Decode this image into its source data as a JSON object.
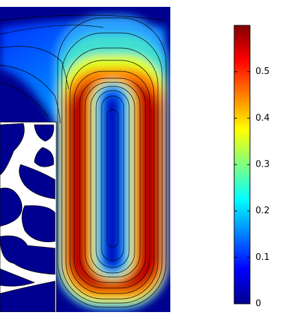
{
  "chart_data": {
    "type": "field",
    "colormap": [
      "#00008f",
      "#0000ff",
      "#0080ff",
      "#00ffff",
      "#80ff80",
      "#ffff00",
      "#ff8000",
      "#ff0000",
      "#800000"
    ],
    "clim": [
      0,
      0.6
    ],
    "cticks": [
      0,
      0.1,
      0.2,
      0.3,
      0.4,
      0.5
    ]
  }
}
